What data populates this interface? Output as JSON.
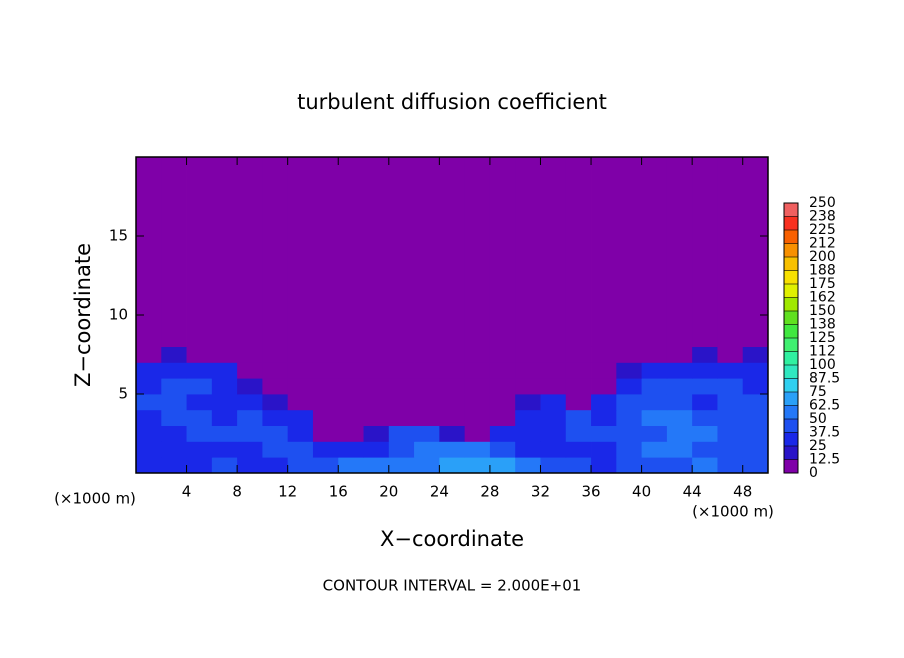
{
  "chart_data": {
    "type": "heatmap",
    "title": "turbulent diffusion coefficient",
    "x_label": "X−coordinate",
    "y_label": "Z−coordinate",
    "x_unit": "(×1000 m)",
    "annotation": "CONTOUR INTERVAL = 2.000E+01",
    "xlim": [
      0,
      50
    ],
    "ylim": [
      0,
      20
    ],
    "xticks": [
      4,
      8,
      12,
      16,
      20,
      24,
      28,
      32,
      36,
      40,
      44,
      48
    ],
    "yticks": [
      5,
      10,
      15
    ],
    "x_bins": [
      0,
      2,
      4,
      6,
      8,
      10,
      12,
      14,
      16,
      18,
      20,
      22,
      24,
      26,
      28,
      30,
      32,
      34,
      36,
      38,
      40,
      42,
      44,
      46,
      48,
      50
    ],
    "z_bins": [
      0,
      1,
      2,
      3,
      4,
      5,
      6,
      7,
      8,
      20
    ],
    "values": [
      [
        30,
        35,
        35,
        40,
        35,
        35,
        40,
        45,
        50,
        50,
        55,
        60,
        65,
        70,
        65,
        60,
        45,
        40,
        35,
        40,
        40,
        45,
        50,
        45,
        40
      ],
      [
        35,
        35,
        30,
        30,
        35,
        45,
        40,
        35,
        30,
        30,
        45,
        60,
        55,
        50,
        45,
        35,
        30,
        30,
        35,
        40,
        50,
        55,
        45,
        40,
        40
      ],
      [
        30,
        35,
        45,
        40,
        45,
        40,
        35,
        10,
        10,
        15,
        40,
        40,
        20,
        10,
        30,
        35,
        35,
        40,
        40,
        45,
        45,
        55,
        50,
        40,
        45
      ],
      [
        35,
        45,
        40,
        25,
        40,
        35,
        30,
        10,
        5,
        10,
        10,
        10,
        5,
        5,
        10,
        30,
        35,
        40,
        35,
        45,
        50,
        50,
        40,
        45,
        45
      ],
      [
        40,
        40,
        30,
        30,
        35,
        20,
        10,
        5,
        5,
        5,
        10,
        5,
        10,
        5,
        5,
        15,
        30,
        10,
        30,
        40,
        40,
        45,
        35,
        40,
        40
      ],
      [
        35,
        40,
        40,
        35,
        15,
        10,
        5,
        5,
        5,
        5,
        5,
        5,
        5,
        5,
        5,
        5,
        10,
        10,
        5,
        35,
        40,
        40,
        40,
        40,
        35
      ],
      [
        30,
        35,
        35,
        30,
        10,
        5,
        5,
        5,
        5,
        5,
        5,
        5,
        5,
        5,
        5,
        5,
        5,
        5,
        5,
        20,
        35,
        35,
        30,
        35,
        30
      ],
      [
        10,
        15,
        10,
        5,
        5,
        5,
        5,
        5,
        5,
        5,
        5,
        5,
        5,
        5,
        5,
        5,
        5,
        5,
        5,
        5,
        10,
        10,
        15,
        10,
        15
      ],
      [
        5,
        5,
        5,
        5,
        5,
        5,
        5,
        5,
        5,
        5,
        5,
        5,
        5,
        5,
        5,
        5,
        5,
        5,
        5,
        5,
        5,
        5,
        5,
        5,
        5
      ]
    ],
    "colorbar_ticks": [
      0,
      12.5,
      25,
      37.5,
      50,
      62.5,
      75,
      87.5,
      100,
      {
        "value": 112.5,
        "label": "112"
      },
      125,
      {
        "value": 137.5,
        "label": "138"
      },
      150,
      {
        "value": 162.5,
        "label": "162"
      },
      175,
      {
        "value": 187.5,
        "label": "188"
      },
      200,
      {
        "value": 212.5,
        "label": "212"
      },
      225,
      {
        "value": 237.5,
        "label": "238"
      },
      250
    ],
    "colors": [
      "#7f00a8",
      "#2a14c8",
      "#1a28e8",
      "#1e50f0",
      "#2478f8",
      "#2aa0f8",
      "#30d0f0",
      "#30e8c0",
      "#30f0a0",
      "#40f070",
      "#40e840",
      "#60e020",
      "#a0e800",
      "#e0f000",
      "#f8e000",
      "#f8c000",
      "#f89000",
      "#f86000",
      "#f83020",
      "#f06060"
    ]
  }
}
